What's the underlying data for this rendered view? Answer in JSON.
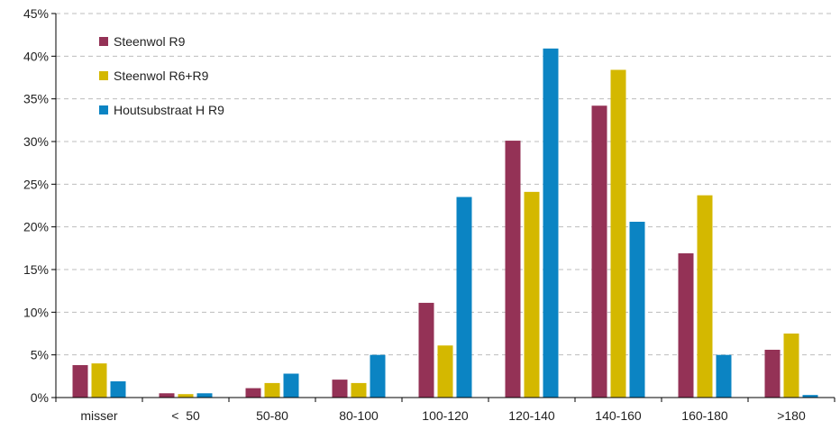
{
  "chart_data": {
    "type": "bar",
    "categories": [
      "misser",
      "<  50",
      "50-80",
      "80-100",
      "100-120",
      "120-140",
      "140-160",
      "160-180",
      ">180"
    ],
    "series": [
      {
        "name": "Steenwol R9",
        "color": "#943256",
        "values": [
          3.8,
          0.5,
          1.1,
          2.1,
          11.1,
          30.1,
          34.2,
          16.9,
          5.6
        ]
      },
      {
        "name": "Steenwol R6+R9",
        "color": "#d4b800",
        "values": [
          4.0,
          0.4,
          1.7,
          1.7,
          6.1,
          24.1,
          38.4,
          23.7,
          7.5
        ]
      },
      {
        "name": "Houtsubstraat H R9",
        "color": "#0b84c3",
        "values": [
          1.9,
          0.5,
          2.8,
          5.0,
          23.5,
          40.9,
          20.6,
          5.0,
          0.3
        ]
      }
    ],
    "ylim": [
      0,
      45
    ],
    "yticks": [
      "0%",
      "5%",
      "10%",
      "15%",
      "20%",
      "25%",
      "30%",
      "35%",
      "40%",
      "45%"
    ],
    "grid": true,
    "legend_position": "top-left",
    "title": "",
    "xlabel": "",
    "ylabel": ""
  }
}
